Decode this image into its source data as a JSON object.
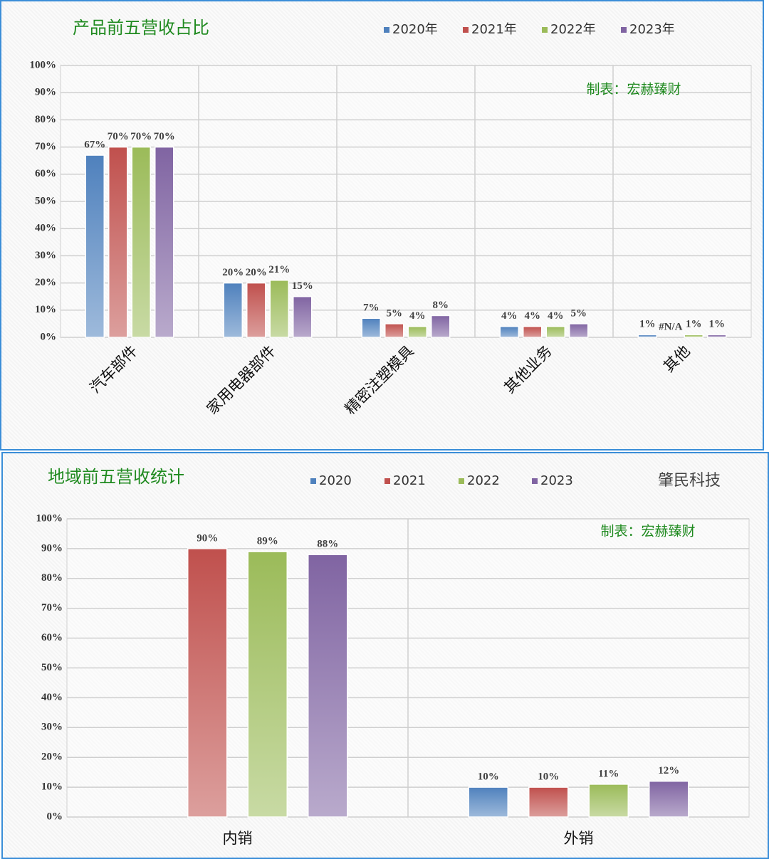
{
  "chart_data": [
    {
      "type": "bar",
      "title": "产品前五营收占比",
      "annotations": [
        "制表：宏赫臻财"
      ],
      "categories": [
        "汽车部件",
        "家用电器部件",
        "精密注塑模具",
        "其他业务",
        "其他"
      ],
      "series": [
        {
          "name": "2020年",
          "color": "#4f81bd",
          "values": [
            67,
            20,
            7,
            4,
            1
          ],
          "value_labels": [
            "67%",
            "20%",
            "7%",
            "4%",
            "1%"
          ]
        },
        {
          "name": "2021年",
          "color": "#c0504d",
          "values": [
            70,
            20,
            5,
            4,
            null
          ],
          "value_labels": [
            "70%",
            "20%",
            "5%",
            "4%",
            "#N/A"
          ]
        },
        {
          "name": "2022年",
          "color": "#9bbb59",
          "values": [
            70,
            21,
            4,
            4,
            1
          ],
          "value_labels": [
            "70%",
            "21%",
            "4%",
            "4%",
            "1%"
          ]
        },
        {
          "name": "2023年",
          "color": "#8064a2",
          "values": [
            70,
            15,
            8,
            5,
            1
          ],
          "value_labels": [
            "70%",
            "15%",
            "8%",
            "5%",
            "1%"
          ]
        }
      ],
      "ylim": [
        0,
        100
      ],
      "yticks": [
        {
          "value": 0,
          "label": "0%"
        },
        {
          "value": 10,
          "label": "10%"
        },
        {
          "value": 20,
          "label": "20%"
        },
        {
          "value": 30,
          "label": "30%"
        },
        {
          "value": 40,
          "label": "40%"
        },
        {
          "value": 50,
          "label": "50%"
        },
        {
          "value": 60,
          "label": "60%"
        },
        {
          "value": 70,
          "label": "70%"
        },
        {
          "value": 80,
          "label": "80%"
        },
        {
          "value": 90,
          "label": "90%"
        },
        {
          "value": 100,
          "label": "100%"
        }
      ],
      "grid": true,
      "legend": "top"
    },
    {
      "type": "bar",
      "title": "地域前五营收统计",
      "annotations": [
        "肇民科技",
        "制表：宏赫臻财"
      ],
      "categories": [
        "内销",
        "外销"
      ],
      "series": [
        {
          "name": "2020",
          "color": "#4f81bd",
          "values": [
            null,
            10
          ],
          "value_labels": [
            null,
            "10%"
          ]
        },
        {
          "name": "2021",
          "color": "#c0504d",
          "values": [
            90,
            10
          ],
          "value_labels": [
            "90%",
            "10%"
          ]
        },
        {
          "name": "2022",
          "color": "#9bbb59",
          "values": [
            89,
            11
          ],
          "value_labels": [
            "89%",
            "11%"
          ]
        },
        {
          "name": "2023",
          "color": "#8064a2",
          "values": [
            88,
            12
          ],
          "value_labels": [
            "88%",
            "12%"
          ]
        }
      ],
      "ylim": [
        0,
        100
      ],
      "yticks": [
        {
          "value": 0,
          "label": "0%"
        },
        {
          "value": 10,
          "label": "10%"
        },
        {
          "value": 20,
          "label": "20%"
        },
        {
          "value": 30,
          "label": "30%"
        },
        {
          "value": 40,
          "label": "40%"
        },
        {
          "value": 50,
          "label": "50%"
        },
        {
          "value": 60,
          "label": "60%"
        },
        {
          "value": 70,
          "label": "70%"
        },
        {
          "value": 80,
          "label": "80%"
        },
        {
          "value": 90,
          "label": "90%"
        },
        {
          "value": 100,
          "label": "100%"
        }
      ],
      "grid": true,
      "legend": "top"
    }
  ]
}
